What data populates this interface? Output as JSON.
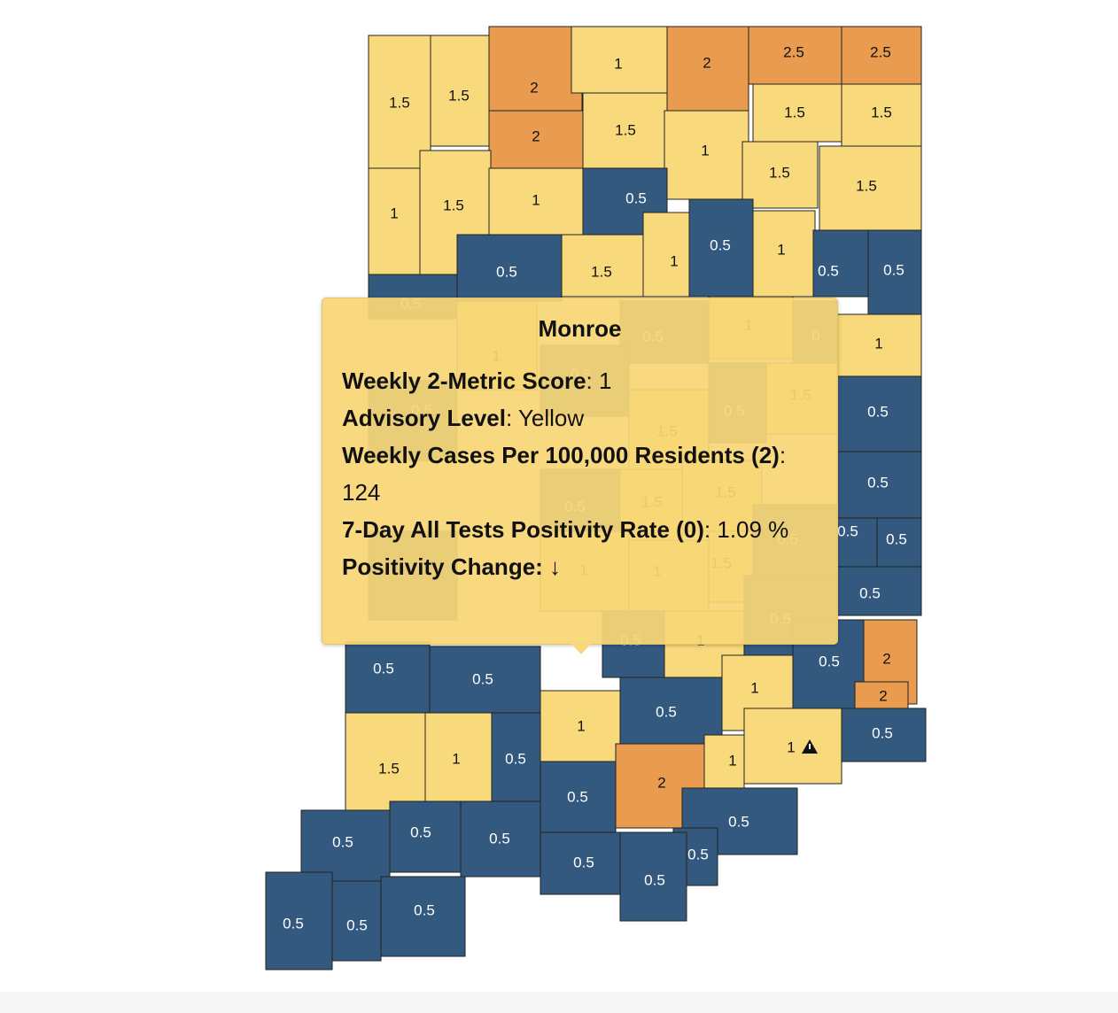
{
  "counties": [
    {
      "label": "1.5",
      "color": "#f8d97b"
    },
    {
      "label": "1.5",
      "color": "#f8d97b"
    },
    {
      "label": "2",
      "color": "#e99c50"
    },
    {
      "label": "2",
      "color": "#e99c50"
    },
    {
      "label": "1",
      "color": "#f8d97b"
    },
    {
      "label": "2",
      "color": "#e99c50"
    },
    {
      "label": "2.5",
      "color": "#e99c50"
    },
    {
      "label": "2.5",
      "color": "#e99c50"
    },
    {
      "label": "1.5",
      "color": "#f8d97b"
    },
    {
      "label": "1.5",
      "color": "#f8d97b"
    },
    {
      "label": "1.5",
      "color": "#f8d97b"
    },
    {
      "label": "1",
      "color": "#f8d97b"
    },
    {
      "label": "1.5",
      "color": "#f8d97b"
    },
    {
      "label": "1.5",
      "color": "#f8d97b"
    },
    {
      "label": "1",
      "color": "#f8d97b"
    },
    {
      "label": "1.5",
      "color": "#f8d97b"
    },
    {
      "label": "1",
      "color": "#f8d97b"
    },
    {
      "label": "0.5",
      "color": "#34597f"
    },
    {
      "label": "0.5",
      "color": "#34597f"
    },
    {
      "label": "1.5",
      "color": "#f8d97b"
    },
    {
      "label": "1",
      "color": "#f8d97b"
    },
    {
      "label": "0.5",
      "color": "#34597f"
    },
    {
      "label": "1",
      "color": "#f8d97b"
    },
    {
      "label": "0.5",
      "color": "#34597f"
    },
    {
      "label": "0.5",
      "color": "#34597f"
    },
    {
      "label": "0.5",
      "color": "#34597f"
    },
    {
      "label": "1",
      "color": "#f8d97b"
    },
    {
      "label": "0.5",
      "color": "#34597f"
    },
    {
      "label": "0.5",
      "color": "#34597f"
    },
    {
      "label": "0.5",
      "color": "#34597f"
    },
    {
      "label": "0.5",
      "color": "#34597f"
    },
    {
      "label": "0.5",
      "color": "#34597f"
    },
    {
      "label": "1",
      "color": "#f8d97b"
    },
    {
      "label": "0.5",
      "color": "#34597f"
    },
    {
      "label": "1",
      "color": "#f8d97b"
    },
    {
      "label": "0",
      "color": "#34597f"
    },
    {
      "label": "1.5",
      "color": "#f8d97b"
    },
    {
      "label": "0.5",
      "color": "#34597f"
    },
    {
      "label": "1.5",
      "color": "#f8d97b"
    },
    {
      "label": "0.5",
      "color": "#34597f"
    },
    {
      "label": "0.5",
      "color": "#34597f"
    },
    {
      "label": "1.5",
      "color": "#f8d97b"
    },
    {
      "label": "1.5",
      "color": "#f8d97b"
    },
    {
      "label": "0.5",
      "color": "#34597f"
    },
    {
      "label": "1",
      "color": "#f8d97b"
    },
    {
      "label": "1",
      "color": "#f8d97b"
    },
    {
      "label": "1.5",
      "color": "#f8d97b"
    },
    {
      "label": "0.5",
      "color": "#34597f"
    },
    {
      "label": "0.5",
      "color": "#34597f"
    },
    {
      "label": "0.5",
      "color": "#34597f"
    },
    {
      "label": "1",
      "color": "#f8d97b"
    },
    {
      "label": "0.5",
      "color": "#34597f"
    },
    {
      "label": "0.5",
      "color": "#34597f"
    },
    {
      "label": "0.5",
      "color": "#34597f"
    },
    {
      "label": "0.5",
      "color": "#34597f"
    },
    {
      "label": "1",
      "color": "#f8d97b"
    },
    {
      "label": "0.5",
      "color": "#34597f"
    },
    {
      "label": "2",
      "color": "#e99c50"
    },
    {
      "label": "2",
      "color": "#e99c50"
    },
    {
      "label": "1",
      "color": "#f8d97b"
    },
    {
      "label": "0.5",
      "color": "#34597f"
    },
    {
      "label": "1",
      "color": "#f8d97b"
    },
    {
      "label": "1.5",
      "color": "#f8d97b"
    },
    {
      "label": "0.5",
      "color": "#34597f"
    },
    {
      "label": "2",
      "color": "#e99c50"
    },
    {
      "label": "1",
      "color": "#f8d97b"
    },
    {
      "label": "1",
      "color": "#f8d97b"
    },
    {
      "label": "0.5",
      "color": "#34597f"
    },
    {
      "label": "0.5",
      "color": "#34597f"
    },
    {
      "label": "0.5",
      "color": "#34597f"
    },
    {
      "label": "0.5",
      "color": "#34597f"
    },
    {
      "label": "0.5",
      "color": "#34597f"
    },
    {
      "label": "0.5",
      "color": "#34597f"
    },
    {
      "label": "0.5",
      "color": "#34597f"
    },
    {
      "label": "0.5",
      "color": "#34597f"
    },
    {
      "label": "0.5",
      "color": "#34597f"
    },
    {
      "label": "0.5",
      "color": "#34597f"
    },
    {
      "label": "0.5",
      "color": "#34597f"
    }
  ],
  "tooltip": {
    "title": "Monroe",
    "rows": [
      {
        "label": "Weekly 2-Metric Score",
        "value": ": 1"
      },
      {
        "label": "Advisory Level",
        "value": ": Yellow"
      },
      {
        "label": "Weekly Cases Per 100,000 Residents (2)",
        "value": ": 124"
      },
      {
        "label": "7-Day All Tests Positivity Rate (0)",
        "value": ": 1.09 %"
      },
      {
        "label": "Positivity Change: ↓",
        "value": ""
      }
    ]
  }
}
